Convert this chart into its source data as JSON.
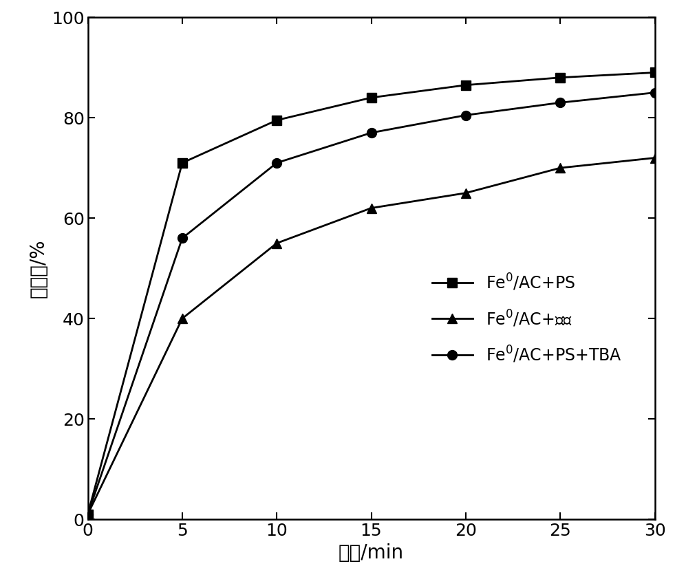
{
  "x": [
    0,
    5,
    10,
    15,
    20,
    25,
    30
  ],
  "series": [
    {
      "label": "Fe°/AC+PS",
      "y": [
        1,
        71,
        79.5,
        84,
        86.5,
        88,
        89
      ],
      "marker": "s",
      "linestyle": "-",
      "color": "#000000"
    },
    {
      "label": "Fe°/AC+乙醇",
      "y": [
        1,
        40,
        55,
        62,
        65,
        70,
        72
      ],
      "marker": "^",
      "linestyle": "-",
      "color": "#000000"
    },
    {
      "label": "Fe°/AC+PS+TBA",
      "y": [
        1,
        56,
        71,
        77,
        80.5,
        83,
        85
      ],
      "marker": "o",
      "linestyle": "-",
      "color": "#000000"
    }
  ],
  "xlabel": "时间/min",
  "ylabel": "去除率/%",
  "xlim": [
    0,
    30
  ],
  "ylim": [
    0,
    100
  ],
  "xticks": [
    0,
    5,
    10,
    15,
    20,
    25,
    30
  ],
  "yticks": [
    0,
    20,
    40,
    60,
    80,
    100
  ],
  "markersize": 10,
  "linewidth": 2.0,
  "xlabel_fontsize": 20,
  "ylabel_fontsize": 20,
  "tick_fontsize": 18,
  "legend_fontsize": 17
}
